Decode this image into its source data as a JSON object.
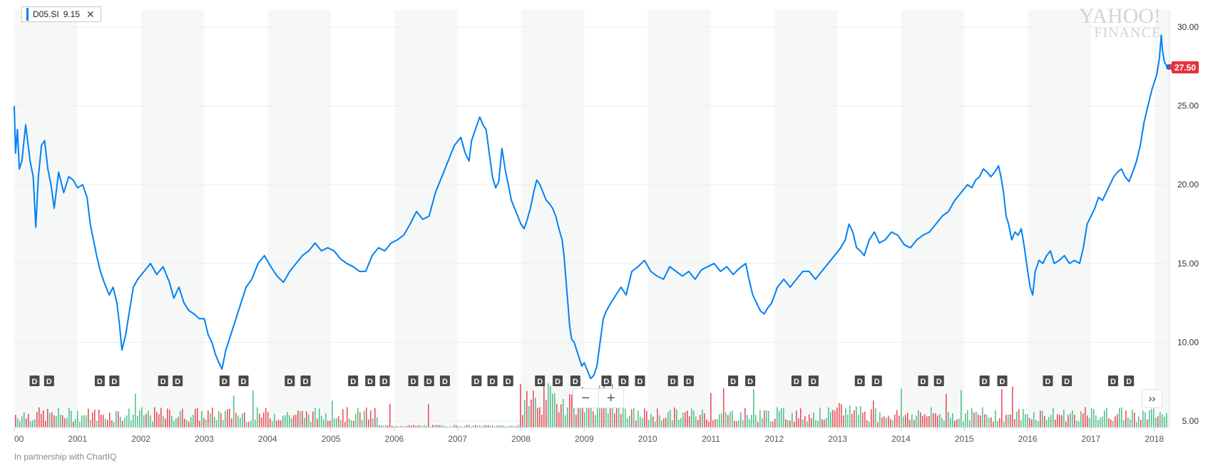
{
  "legend": {
    "symbol": "D05.SI",
    "value": "9.15",
    "close_icon": "close-icon",
    "close_glyph": "✕"
  },
  "watermark": {
    "line1": "YAHOO!",
    "line2": "FINANCE"
  },
  "footer": "In partnership with ChartIQ",
  "controls": {
    "zoom_out": "−",
    "zoom_in": "+",
    "scroll_right": "››"
  },
  "colors": {
    "line": "#0081f2",
    "up_volume": "#36b77a",
    "down_volume": "#e5323e",
    "band": "#f6f8f8",
    "marker_bg": "#4a4a4a",
    "price_tag": "#e5323e"
  },
  "chart_data": {
    "type": "line",
    "title": "",
    "series": [
      {
        "name": "D05.SI",
        "points": [
          [
            2000.0,
            25.0
          ],
          [
            2000.02,
            22.0
          ],
          [
            2000.05,
            23.5
          ],
          [
            2000.08,
            21.0
          ],
          [
            2000.12,
            21.5
          ],
          [
            2000.18,
            23.8
          ],
          [
            2000.25,
            21.5
          ],
          [
            2000.3,
            20.5
          ],
          [
            2000.34,
            17.3
          ],
          [
            2000.38,
            20.5
          ],
          [
            2000.43,
            22.5
          ],
          [
            2000.48,
            22.8
          ],
          [
            2000.53,
            21.0
          ],
          [
            2000.58,
            20.0
          ],
          [
            2000.63,
            18.5
          ],
          [
            2000.7,
            20.8
          ],
          [
            2000.78,
            19.5
          ],
          [
            2000.86,
            20.5
          ],
          [
            2000.93,
            20.3
          ],
          [
            2001.0,
            19.8
          ],
          [
            2001.08,
            20.0
          ],
          [
            2001.15,
            19.2
          ],
          [
            2001.2,
            17.5
          ],
          [
            2001.25,
            16.5
          ],
          [
            2001.3,
            15.5
          ],
          [
            2001.36,
            14.5
          ],
          [
            2001.42,
            13.8
          ],
          [
            2001.5,
            13.0
          ],
          [
            2001.56,
            13.5
          ],
          [
            2001.62,
            12.5
          ],
          [
            2001.66,
            11.2
          ],
          [
            2001.7,
            9.5
          ],
          [
            2001.76,
            10.5
          ],
          [
            2001.82,
            12.0
          ],
          [
            2001.88,
            13.5
          ],
          [
            2001.95,
            14.0
          ],
          [
            2002.05,
            14.5
          ],
          [
            2002.15,
            15.0
          ],
          [
            2002.25,
            14.3
          ],
          [
            2002.35,
            14.8
          ],
          [
            2002.45,
            13.8
          ],
          [
            2002.52,
            12.8
          ],
          [
            2002.6,
            13.5
          ],
          [
            2002.68,
            12.5
          ],
          [
            2002.76,
            12.0
          ],
          [
            2002.84,
            11.8
          ],
          [
            2002.92,
            11.5
          ],
          [
            2003.0,
            11.5
          ],
          [
            2003.06,
            10.5
          ],
          [
            2003.12,
            10.0
          ],
          [
            2003.18,
            9.2
          ],
          [
            2003.22,
            8.8
          ],
          [
            2003.28,
            8.3
          ],
          [
            2003.34,
            9.5
          ],
          [
            2003.42,
            10.5
          ],
          [
            2003.5,
            11.5
          ],
          [
            2003.58,
            12.5
          ],
          [
            2003.66,
            13.5
          ],
          [
            2003.75,
            14.0
          ],
          [
            2003.85,
            15.0
          ],
          [
            2003.95,
            15.5
          ],
          [
            2004.05,
            14.8
          ],
          [
            2004.15,
            14.2
          ],
          [
            2004.25,
            13.8
          ],
          [
            2004.35,
            14.5
          ],
          [
            2004.45,
            15.0
          ],
          [
            2004.55,
            15.5
          ],
          [
            2004.65,
            15.8
          ],
          [
            2004.75,
            16.3
          ],
          [
            2004.85,
            15.8
          ],
          [
            2004.95,
            16.0
          ],
          [
            2005.05,
            15.8
          ],
          [
            2005.15,
            15.3
          ],
          [
            2005.25,
            15.0
          ],
          [
            2005.35,
            14.8
          ],
          [
            2005.45,
            14.5
          ],
          [
            2005.55,
            14.5
          ],
          [
            2005.65,
            15.5
          ],
          [
            2005.75,
            16.0
          ],
          [
            2005.85,
            15.8
          ],
          [
            2005.95,
            16.3
          ],
          [
            2006.05,
            16.5
          ],
          [
            2006.15,
            16.8
          ],
          [
            2006.25,
            17.5
          ],
          [
            2006.35,
            18.3
          ],
          [
            2006.45,
            17.8
          ],
          [
            2006.55,
            18.0
          ],
          [
            2006.65,
            19.5
          ],
          [
            2006.75,
            20.5
          ],
          [
            2006.85,
            21.5
          ],
          [
            2006.95,
            22.5
          ],
          [
            2007.05,
            23.0
          ],
          [
            2007.12,
            22.0
          ],
          [
            2007.18,
            21.5
          ],
          [
            2007.22,
            22.8
          ],
          [
            2007.28,
            23.5
          ],
          [
            2007.35,
            24.3
          ],
          [
            2007.4,
            23.8
          ],
          [
            2007.45,
            23.5
          ],
          [
            2007.5,
            22.0
          ],
          [
            2007.55,
            20.5
          ],
          [
            2007.6,
            19.8
          ],
          [
            2007.65,
            20.2
          ],
          [
            2007.7,
            22.3
          ],
          [
            2007.75,
            21.0
          ],
          [
            2007.8,
            20.0
          ],
          [
            2007.85,
            19.0
          ],
          [
            2007.9,
            18.5
          ],
          [
            2007.95,
            18.0
          ],
          [
            2008.0,
            17.5
          ],
          [
            2008.05,
            17.2
          ],
          [
            2008.1,
            17.8
          ],
          [
            2008.15,
            18.5
          ],
          [
            2008.2,
            19.5
          ],
          [
            2008.25,
            20.3
          ],
          [
            2008.3,
            20.0
          ],
          [
            2008.35,
            19.5
          ],
          [
            2008.4,
            19.0
          ],
          [
            2008.45,
            18.8
          ],
          [
            2008.5,
            18.5
          ],
          [
            2008.55,
            18.0
          ],
          [
            2008.6,
            17.2
          ],
          [
            2008.65,
            16.5
          ],
          [
            2008.68,
            15.5
          ],
          [
            2008.71,
            14.0
          ],
          [
            2008.74,
            12.5
          ],
          [
            2008.77,
            11.0
          ],
          [
            2008.8,
            10.2
          ],
          [
            2008.84,
            10.0
          ],
          [
            2008.88,
            9.5
          ],
          [
            2008.92,
            9.0
          ],
          [
            2008.96,
            8.5
          ],
          [
            2009.0,
            8.7
          ],
          [
            2009.05,
            8.2
          ],
          [
            2009.1,
            7.7
          ],
          [
            2009.15,
            7.9
          ],
          [
            2009.2,
            8.5
          ],
          [
            2009.25,
            10.0
          ],
          [
            2009.3,
            11.5
          ],
          [
            2009.35,
            12.0
          ],
          [
            2009.42,
            12.5
          ],
          [
            2009.5,
            13.0
          ],
          [
            2009.58,
            13.5
          ],
          [
            2009.66,
            13.0
          ],
          [
            2009.75,
            14.5
          ],
          [
            2009.85,
            14.8
          ],
          [
            2009.95,
            15.2
          ],
          [
            2010.05,
            14.5
          ],
          [
            2010.15,
            14.2
          ],
          [
            2010.25,
            14.0
          ],
          [
            2010.35,
            14.8
          ],
          [
            2010.45,
            14.5
          ],
          [
            2010.55,
            14.2
          ],
          [
            2010.65,
            14.5
          ],
          [
            2010.75,
            14.0
          ],
          [
            2010.85,
            14.6
          ],
          [
            2010.95,
            14.8
          ],
          [
            2011.05,
            15.0
          ],
          [
            2011.15,
            14.5
          ],
          [
            2011.25,
            14.8
          ],
          [
            2011.35,
            14.3
          ],
          [
            2011.45,
            14.7
          ],
          [
            2011.55,
            15.0
          ],
          [
            2011.6,
            14.0
          ],
          [
            2011.66,
            13.0
          ],
          [
            2011.72,
            12.5
          ],
          [
            2011.78,
            12.0
          ],
          [
            2011.84,
            11.8
          ],
          [
            2011.9,
            12.2
          ],
          [
            2011.96,
            12.5
          ],
          [
            2012.05,
            13.5
          ],
          [
            2012.15,
            14.0
          ],
          [
            2012.25,
            13.5
          ],
          [
            2012.35,
            14.0
          ],
          [
            2012.45,
            14.5
          ],
          [
            2012.55,
            14.5
          ],
          [
            2012.65,
            14.0
          ],
          [
            2012.75,
            14.5
          ],
          [
            2012.85,
            15.0
          ],
          [
            2012.95,
            15.5
          ],
          [
            2013.05,
            16.0
          ],
          [
            2013.12,
            16.5
          ],
          [
            2013.18,
            17.5
          ],
          [
            2013.24,
            17.0
          ],
          [
            2013.3,
            16.0
          ],
          [
            2013.36,
            15.8
          ],
          [
            2013.42,
            15.5
          ],
          [
            2013.5,
            16.5
          ],
          [
            2013.58,
            17.0
          ],
          [
            2013.66,
            16.3
          ],
          [
            2013.75,
            16.5
          ],
          [
            2013.85,
            17.0
          ],
          [
            2013.95,
            16.8
          ],
          [
            2014.05,
            16.2
          ],
          [
            2014.15,
            16.0
          ],
          [
            2014.25,
            16.5
          ],
          [
            2014.35,
            16.8
          ],
          [
            2014.45,
            17.0
          ],
          [
            2014.55,
            17.5
          ],
          [
            2014.65,
            18.0
          ],
          [
            2014.75,
            18.3
          ],
          [
            2014.85,
            19.0
          ],
          [
            2014.95,
            19.5
          ],
          [
            2015.05,
            20.0
          ],
          [
            2015.12,
            19.8
          ],
          [
            2015.18,
            20.3
          ],
          [
            2015.24,
            20.5
          ],
          [
            2015.3,
            21.0
          ],
          [
            2015.36,
            20.8
          ],
          [
            2015.42,
            20.5
          ],
          [
            2015.48,
            20.8
          ],
          [
            2015.54,
            21.2
          ],
          [
            2015.58,
            20.5
          ],
          [
            2015.62,
            19.5
          ],
          [
            2015.66,
            18.0
          ],
          [
            2015.7,
            17.5
          ],
          [
            2015.75,
            16.5
          ],
          [
            2015.8,
            17.0
          ],
          [
            2015.85,
            16.8
          ],
          [
            2015.9,
            17.2
          ],
          [
            2015.95,
            16.0
          ],
          [
            2016.0,
            14.5
          ],
          [
            2016.04,
            13.5
          ],
          [
            2016.08,
            13.0
          ],
          [
            2016.12,
            14.5
          ],
          [
            2016.18,
            15.2
          ],
          [
            2016.24,
            15.0
          ],
          [
            2016.3,
            15.5
          ],
          [
            2016.36,
            15.8
          ],
          [
            2016.42,
            15.0
          ],
          [
            2016.5,
            15.2
          ],
          [
            2016.58,
            15.5
          ],
          [
            2016.66,
            15.0
          ],
          [
            2016.74,
            15.2
          ],
          [
            2016.82,
            15.0
          ],
          [
            2016.88,
            16.0
          ],
          [
            2016.94,
            17.5
          ],
          [
            2017.0,
            18.0
          ],
          [
            2017.06,
            18.5
          ],
          [
            2017.12,
            19.2
          ],
          [
            2017.18,
            19.0
          ],
          [
            2017.24,
            19.5
          ],
          [
            2017.3,
            20.0
          ],
          [
            2017.36,
            20.5
          ],
          [
            2017.42,
            20.8
          ],
          [
            2017.48,
            21.0
          ],
          [
            2017.54,
            20.5
          ],
          [
            2017.6,
            20.2
          ],
          [
            2017.66,
            20.8
          ],
          [
            2017.72,
            21.5
          ],
          [
            2017.78,
            22.5
          ],
          [
            2017.84,
            24.0
          ],
          [
            2017.9,
            25.0
          ],
          [
            2017.96,
            26.0
          ],
          [
            2018.0,
            26.5
          ],
          [
            2018.04,
            27.0
          ],
          [
            2018.08,
            28.0
          ],
          [
            2018.11,
            29.5
          ],
          [
            2018.13,
            28.5
          ],
          [
            2018.16,
            27.8
          ],
          [
            2018.2,
            27.5
          ]
        ]
      }
    ],
    "x_ticks": [
      "00",
      "2001",
      "2002",
      "2003",
      "2004",
      "2005",
      "2006",
      "2007",
      "2008",
      "2009",
      "2010",
      "2011",
      "2012",
      "2013",
      "2014",
      "2015",
      "2016",
      "2017",
      "2018"
    ],
    "y_ticks": [
      "5.00",
      "10.00",
      "15.00",
      "20.00",
      "25.00",
      "30.00"
    ],
    "xlim": [
      2000.0,
      2018.24
    ],
    "ylim": [
      5.0,
      30.0
    ],
    "last_price": "27.50",
    "dividend_markers": {
      "label": "D",
      "positions": [
        2000.32,
        2000.55,
        2001.35,
        2001.58,
        2002.35,
        2002.58,
        2003.32,
        2003.62,
        2004.35,
        2004.6,
        2005.35,
        2005.62,
        2005.85,
        2006.3,
        2006.55,
        2006.8,
        2007.3,
        2007.55,
        2007.8,
        2008.3,
        2008.58,
        2008.86,
        2009.35,
        2009.62,
        2009.88,
        2010.4,
        2010.65,
        2011.35,
        2011.62,
        2012.35,
        2012.62,
        2013.35,
        2013.62,
        2014.35,
        2014.6,
        2015.32,
        2015.6,
        2016.32,
        2016.62,
        2017.35,
        2017.6
      ]
    },
    "grid": true,
    "legend_position": "top-left"
  }
}
